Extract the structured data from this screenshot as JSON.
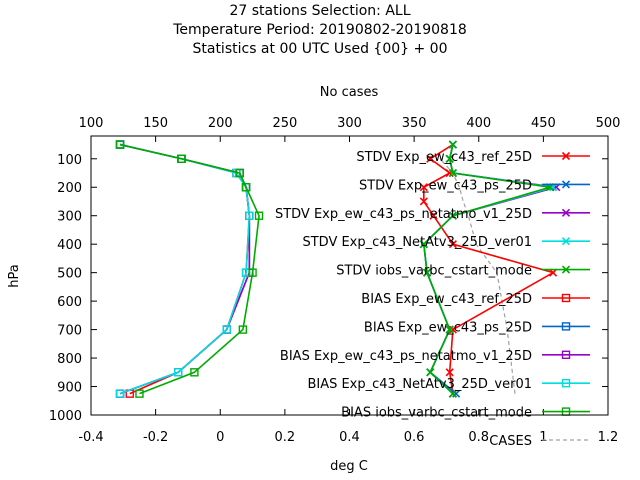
{
  "chart_data": {
    "type": "line",
    "title_lines": [
      "27 stations Selection: ALL",
      "Temperature  Period: 20190802-20190818",
      "Statistics at 00 UTC  Used {00} + 00"
    ],
    "xlabel": "deg C",
    "x2label": "No cases",
    "ylabel": "hPa",
    "xlim": [
      -0.4,
      1.2
    ],
    "x2lim": [
      100,
      500
    ],
    "ylim": [
      1000,
      20
    ],
    "x_ticks": [
      -0.4,
      -0.2,
      0,
      0.2,
      0.4,
      0.6,
      0.8,
      1,
      1.2
    ],
    "x_tick_labels": [
      "-0.4",
      "-0.2",
      "0",
      "0.2",
      "0.4",
      "0.6",
      "0.8",
      "1",
      "1.2"
    ],
    "x2_ticks": [
      100,
      150,
      200,
      250,
      300,
      350,
      400,
      450,
      500
    ],
    "x2_tick_labels": [
      "100",
      "150",
      "200",
      "250",
      "300",
      "350",
      "400",
      "450",
      "500"
    ],
    "y_ticks": [
      100,
      200,
      300,
      400,
      500,
      600,
      700,
      800,
      900,
      1000
    ],
    "y_tick_labels": [
      "100",
      "200",
      "300",
      "400",
      "500",
      "600",
      "700",
      "800",
      "900",
      "1000"
    ],
    "legend_position": "top-right",
    "series": [
      {
        "name": "STDV Exp_ew_c43_ref_25D",
        "color": "#ff0000",
        "marker": "x",
        "x": [
          0.72,
          0.71,
          0.72,
          1.03,
          0.72,
          0.66,
          0.63,
          0.63,
          0.71,
          0.65,
          0.72
        ],
        "y": [
          925,
          850,
          700,
          500,
          400,
          300,
          250,
          200,
          150,
          100,
          50
        ]
      },
      {
        "name": "STDV Exp_ew_c43_ps_25D",
        "color": "#0066cc",
        "marker": "x",
        "x": [
          0.73,
          0.65,
          0.71,
          0.64,
          0.63,
          0.72,
          1.03,
          0.72,
          0.71,
          0.72
        ],
        "y": [
          925,
          850,
          700,
          500,
          400,
          300,
          200,
          150,
          100,
          50
        ]
      },
      {
        "name": "STDV Exp_ew_c43_ps_netatmo_v1_25D",
        "color": "#9900cc",
        "marker": "x",
        "x": [
          0.72,
          0.65,
          0.71,
          0.64,
          0.63,
          0.72,
          1.04,
          0.72,
          0.71,
          0.72
        ],
        "y": [
          925,
          850,
          700,
          500,
          400,
          300,
          200,
          150,
          100,
          50
        ]
      },
      {
        "name": "STDV Exp_c43_NetAtv3_25D_ver01",
        "color": "#00dddd",
        "marker": "x",
        "x": [
          0.72,
          0.65,
          0.71,
          0.64,
          0.63,
          0.72,
          1.03,
          0.72,
          0.71,
          0.72
        ],
        "y": [
          925,
          850,
          700,
          500,
          400,
          300,
          200,
          150,
          100,
          50
        ]
      },
      {
        "name": "STDV iobs_varbc_cstart_mode",
        "color": "#00aa00",
        "marker": "x",
        "x": [
          0.72,
          0.65,
          0.71,
          0.64,
          0.63,
          0.72,
          1.02,
          0.72,
          0.71,
          0.72
        ],
        "y": [
          925,
          850,
          700,
          500,
          400,
          300,
          200,
          150,
          100,
          50
        ]
      },
      {
        "name": "BIAS Exp_ew_c43_ref_25D",
        "color": "#ff0000",
        "marker": "square",
        "x": [
          -0.28,
          -0.13,
          0.02,
          0.08,
          0.09,
          0.08,
          0.06,
          -0.12,
          -0.31
        ],
        "y": [
          925,
          850,
          700,
          500,
          300,
          200,
          150,
          100,
          50
        ]
      },
      {
        "name": "BIAS Exp_ew_c43_ps_25D",
        "color": "#0066cc",
        "marker": "square",
        "x": [
          -0.31,
          -0.13,
          0.02,
          0.09,
          0.09,
          0.08,
          0.06,
          -0.12,
          -0.31
        ],
        "y": [
          925,
          850,
          700,
          500,
          300,
          200,
          150,
          100,
          50
        ]
      },
      {
        "name": "BIAS Exp_ew_c43_ps_netatmo_v1_25D",
        "color": "#9900cc",
        "marker": "square",
        "x": [
          -0.31,
          -0.13,
          0.02,
          0.09,
          0.09,
          0.08,
          0.05,
          -0.12,
          -0.31
        ],
        "y": [
          925,
          850,
          700,
          500,
          300,
          200,
          150,
          100,
          50
        ]
      },
      {
        "name": "BIAS Exp_c43_NetAtv3_25D_ver01",
        "color": "#00dddd",
        "marker": "square",
        "x": [
          -0.31,
          -0.13,
          0.02,
          0.08,
          0.09,
          0.08,
          0.05,
          -0.12,
          -0.31
        ],
        "y": [
          925,
          850,
          700,
          500,
          300,
          200,
          150,
          100,
          50
        ]
      },
      {
        "name": "BIAS iobs_varbc_cstart_mode",
        "color": "#00aa00",
        "marker": "square",
        "x": [
          -0.25,
          -0.08,
          0.07,
          0.1,
          0.12,
          0.08,
          0.06,
          -0.12,
          -0.31
        ],
        "y": [
          925,
          850,
          700,
          500,
          300,
          200,
          150,
          100,
          50
        ]
      }
    ],
    "cases": {
      "name": "CASES",
      "color": "#a0a0a0",
      "x2": [
        428,
        426,
        422,
        414,
        398,
        392,
        388,
        385,
        380,
        370
      ],
      "y": [
        925,
        850,
        700,
        500,
        400,
        300,
        250,
        200,
        150,
        100
      ]
    }
  }
}
